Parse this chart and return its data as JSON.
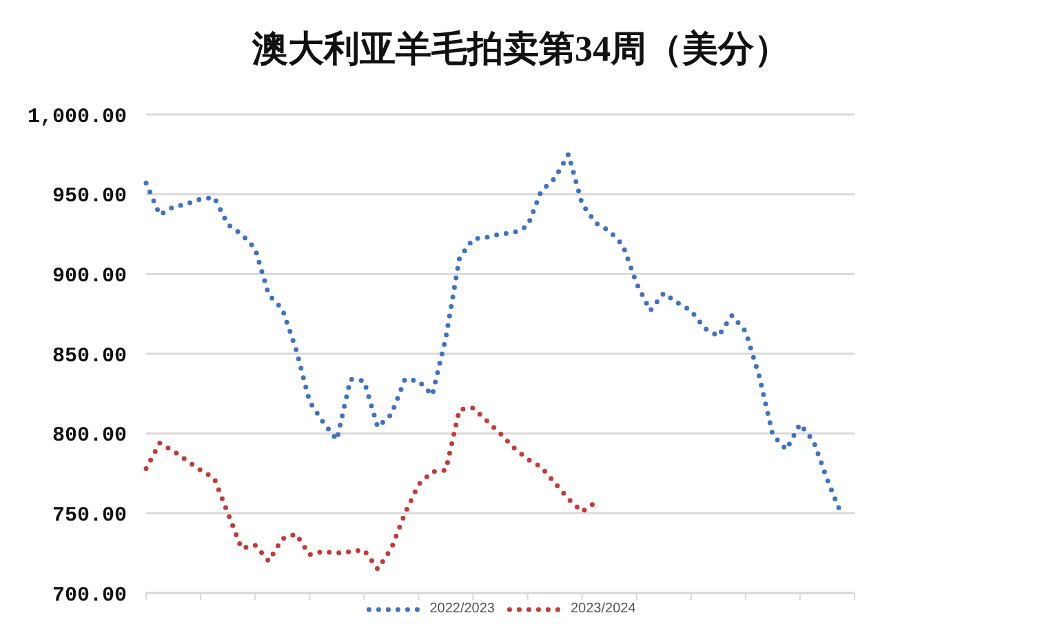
{
  "chart_data": {
    "type": "line",
    "title": "澳大利亚羊毛拍卖第34周（美分）",
    "categories": [
      null,
      null,
      null,
      null,
      null,
      null,
      null,
      null,
      null,
      null,
      null,
      null,
      null,
      null,
      null,
      null,
      null,
      null,
      null,
      null,
      null,
      null,
      null,
      null,
      null,
      null,
      null,
      null,
      null,
      null,
      null,
      null,
      null,
      null,
      null,
      null,
      null,
      null,
      null,
      null,
      null,
      null,
      null,
      null,
      null,
      null,
      null,
      null,
      null,
      null,
      null,
      null,
      null
    ],
    "series": [
      {
        "name": "2022/2023",
        "color": "#3f72c0",
        "values": [
          957,
          937,
          942,
          944,
          947,
          948,
          931,
          925,
          916,
          887,
          878,
          853,
          820,
          807,
          796,
          834,
          833,
          804,
          812,
          834,
          833,
          824,
          860,
          910,
          922,
          923,
          925,
          926,
          930,
          952,
          960,
          975,
          944,
          932,
          927,
          918,
          894,
          877,
          888,
          882,
          877,
          866,
          861,
          874,
          864,
          836,
          799,
          790,
          806,
          795,
          771,
          750,
          null
        ]
      },
      {
        "name": "2023/2024",
        "color": "#c53a35",
        "values": [
          778,
          794,
          789,
          783,
          777,
          772,
          750,
          728,
          730,
          720,
          734,
          737,
          724,
          726,
          725,
          726,
          727,
          715,
          728,
          750,
          768,
          776,
          777,
          815,
          816,
          808,
          800,
          791,
          784,
          779,
          769,
          759,
          751,
          757,
          null,
          null,
          null,
          null,
          null,
          null,
          null,
          null,
          null,
          null,
          null,
          null,
          null,
          null,
          null,
          null,
          null,
          null,
          null
        ]
      }
    ],
    "ylim": [
      700,
      1000
    ],
    "yticks": [
      {
        "value": 700,
        "label": "700.00"
      },
      {
        "value": 750,
        "label": "750.00"
      },
      {
        "value": 800,
        "label": "800.00"
      },
      {
        "value": 850,
        "label": "850.00"
      },
      {
        "value": 900,
        "label": "900.00"
      },
      {
        "value": 950,
        "label": "950.00"
      },
      {
        "value": 1000,
        "label": "1,000.00"
      }
    ],
    "grid": "y",
    "legend": "bottom",
    "marker": "none",
    "line_style": "dotted"
  }
}
